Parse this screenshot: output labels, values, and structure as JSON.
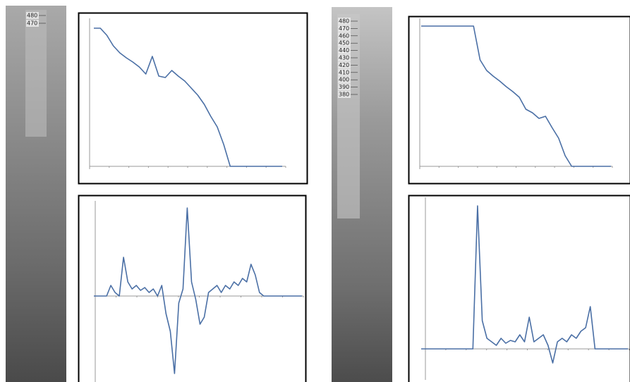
{
  "strips": [
    {
      "labels": [
        "480",
        "470"
      ]
    },
    {
      "labels": [
        "480",
        "470",
        "460",
        "450",
        "440",
        "430",
        "420",
        "410",
        "400",
        "390",
        "380"
      ]
    }
  ],
  "chart_data": [
    {
      "type": "line",
      "color": "#4a6fa5",
      "ylim": [
        0,
        210
      ],
      "values": [
        196,
        196,
        186,
        171,
        161,
        154,
        148,
        141,
        131,
        156,
        128,
        126,
        136,
        128,
        121,
        111,
        101,
        88,
        71,
        56,
        31,
        0,
        0,
        0,
        0,
        0,
        0,
        0,
        0,
        0
      ]
    },
    {
      "type": "line",
      "color": "#4a6fa5",
      "ylim": [
        -120,
        135
      ],
      "values": [
        0,
        0,
        0,
        0,
        15,
        5,
        0,
        55,
        20,
        10,
        15,
        8,
        12,
        5,
        10,
        0,
        15,
        -25,
        -50,
        -110,
        -10,
        10,
        125,
        20,
        -5,
        -40,
        -30,
        5,
        10,
        15,
        5,
        15,
        10,
        20,
        15,
        25,
        20,
        45,
        30,
        5,
        0,
        0,
        0,
        0,
        0,
        0,
        0,
        0,
        0,
        0
      ]
    },
    {
      "type": "line",
      "color": "#4a6fa5",
      "ylim": [
        0,
        210
      ],
      "values": [
        199,
        199,
        199,
        199,
        199,
        199,
        199,
        199,
        199,
        151,
        136,
        128,
        121,
        113,
        106,
        98,
        81,
        76,
        68,
        71,
        55,
        40,
        15,
        0,
        0,
        0,
        0,
        0,
        0,
        0
      ]
    },
    {
      "type": "line",
      "color": "#4a6fa5",
      "ylim": [
        -40,
        215
      ],
      "values": [
        0,
        0,
        0,
        0,
        0,
        0,
        0,
        0,
        0,
        0,
        0,
        0,
        203,
        40,
        15,
        10,
        5,
        15,
        8,
        12,
        10,
        20,
        10,
        45,
        10,
        15,
        20,
        5,
        -20,
        10,
        15,
        10,
        20,
        15,
        25,
        30,
        60,
        0,
        0,
        0,
        0,
        0,
        0,
        0,
        0
      ]
    }
  ]
}
